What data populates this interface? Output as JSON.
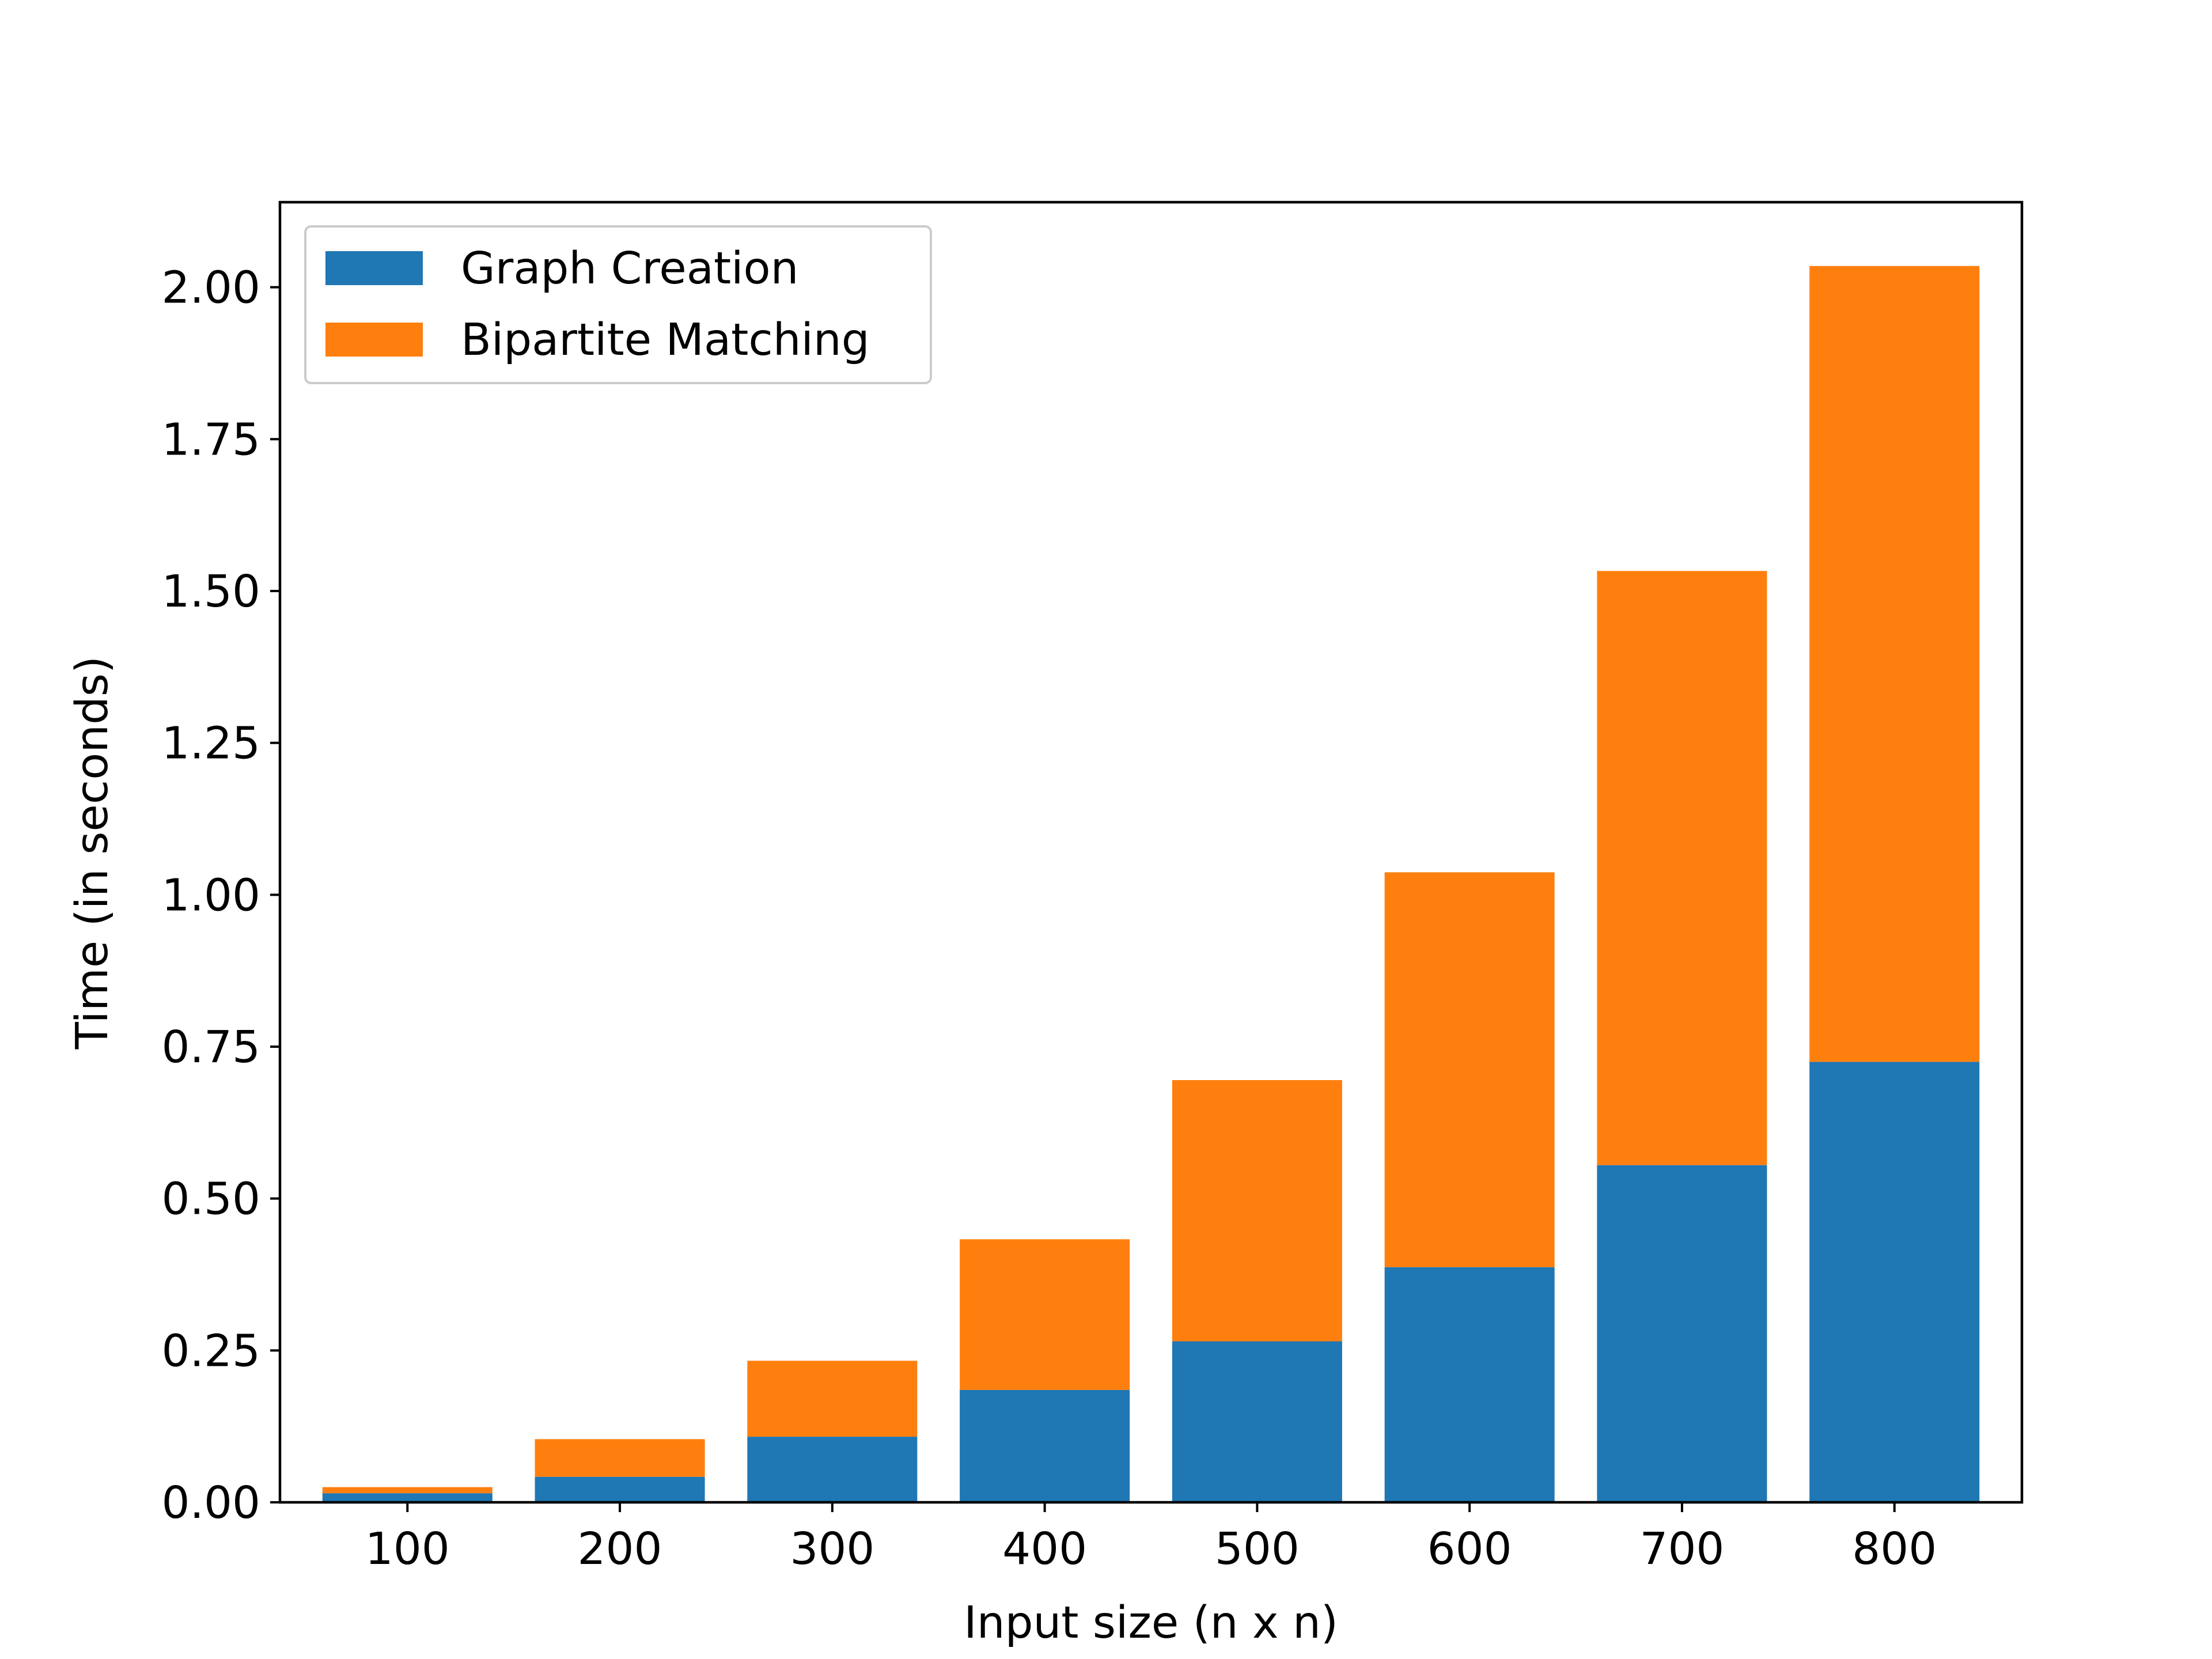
{
  "chart_data": {
    "type": "bar",
    "stacked": true,
    "title": "",
    "xlabel": "Input size (n x n)",
    "ylabel": "Time (in seconds)",
    "categories": [
      "100",
      "200",
      "300",
      "400",
      "500",
      "600",
      "700",
      "800"
    ],
    "series": [
      {
        "name": "Graph Creation",
        "color": "#1f77b4",
        "values": [
          0.015,
          0.042,
          0.108,
          0.185,
          0.265,
          0.387,
          0.555,
          0.725
        ]
      },
      {
        "name": "Bipartite Matching",
        "color": "#ff7f0e",
        "values": [
          0.01,
          0.062,
          0.125,
          0.248,
          0.43,
          0.65,
          0.978,
          1.31
        ]
      }
    ],
    "ylim": [
      0,
      2.14
    ],
    "yticks": [
      "0.00",
      "0.25",
      "0.50",
      "0.75",
      "1.00",
      "1.25",
      "1.50",
      "1.75",
      "2.00"
    ],
    "grid": false,
    "legend_position": "top-left"
  }
}
